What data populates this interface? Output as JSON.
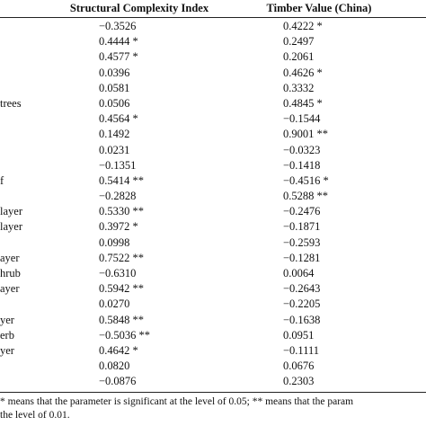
{
  "table": {
    "columns": [
      "Structural Complexity Index",
      "Timber Value (China)"
    ],
    "rows": [
      {
        "label": "",
        "sci": "−0.3526",
        "tv": "0.4222 *"
      },
      {
        "label": "",
        "sci": "0.4444 *",
        "tv": "0.2497"
      },
      {
        "label": "",
        "sci": "0.4577 *",
        "tv": "0.2061"
      },
      {
        "label": "",
        "sci": "0.0396",
        "tv": "0.4626 *"
      },
      {
        "label": "",
        "sci": "0.0581",
        "tv": "0.3332"
      },
      {
        "label": "trees",
        "sci": "0.0506",
        "tv": "0.4845 *"
      },
      {
        "label": "",
        "sci": "0.4564 *",
        "tv": "−0.1544"
      },
      {
        "label": "",
        "sci": "0.1492",
        "tv": "0.9001 **"
      },
      {
        "label": "",
        "sci": "0.0231",
        "tv": "−0.0323"
      },
      {
        "label": "",
        "sci": "−0.1351",
        "tv": "−0.1418"
      },
      {
        "label": "f",
        "sci": "0.5414 **",
        "tv": "−0.4516 *"
      },
      {
        "label": "",
        "sci": "−0.2828",
        "tv": "0.5288 **"
      },
      {
        "label": "layer",
        "sci": "0.5330 **",
        "tv": "−0.2476"
      },
      {
        "label": "layer",
        "sci": "0.3972 *",
        "tv": "−0.1871"
      },
      {
        "label": "",
        "sci": "0.0998",
        "tv": "−0.2593"
      },
      {
        "label": "ayer",
        "sci": "0.7522 **",
        "tv": "−0.1281"
      },
      {
        "label": "hrub",
        "sci": "−0.6310",
        "tv": "0.0064"
      },
      {
        "label": "ayer",
        "sci": "0.5942 **",
        "tv": "−0.2643"
      },
      {
        "label": "",
        "sci": "0.0270",
        "tv": "−0.2205"
      },
      {
        "label": "yer",
        "sci": "0.5848 **",
        "tv": "−0.1638"
      },
      {
        "label": "erb",
        "sci": "−0.5036 **",
        "tv": "0.0951"
      },
      {
        "label": "yer",
        "sci": "0.4642 *",
        "tv": "−0.1111"
      },
      {
        "label": "",
        "sci": "0.0820",
        "tv": "0.0676"
      },
      {
        "label": "",
        "sci": "−0.0876",
        "tv": "0.2303"
      }
    ]
  },
  "notes": [
    "* means that the parameter is significant at the level of 0.05; ** means that the param",
    "the level of 0.01."
  ]
}
